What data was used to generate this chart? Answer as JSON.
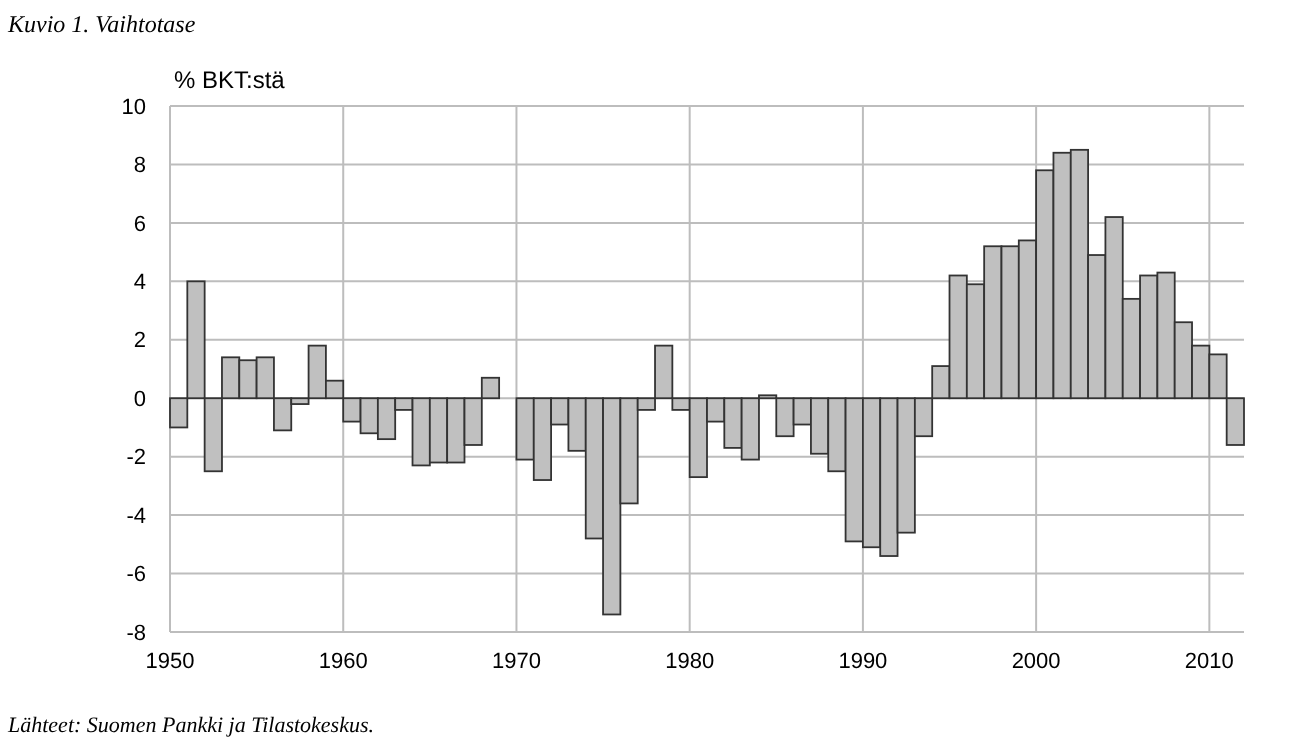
{
  "chart_data": {
    "type": "bar",
    "title": "Kuvio 1. Vaihtotase",
    "ylabel": "% BKT:stä",
    "annotations": [
      "Lähteet: Suomen Pankki ja Tilastokeskus."
    ],
    "x": [
      1950.5,
      1951.5,
      1952.5,
      1953.5,
      1954.5,
      1955.5,
      1956.5,
      1957.5,
      1958.5,
      1959.5,
      1960.5,
      1961.5,
      1962.5,
      1963.5,
      1964.5,
      1965.5,
      1966.5,
      1967.5,
      1968.5,
      1969.5,
      1970.5,
      1971.5,
      1972.5,
      1973.5,
      1974.5,
      1975.5,
      1976.5,
      1977.5,
      1978.5,
      1979.5,
      1980.5,
      1981.5,
      1982.5,
      1983.5,
      1984.5,
      1985.5,
      1986.5,
      1987.5,
      1988.5,
      1989.5,
      1990.5,
      1991.5,
      1992.5,
      1993.5,
      1994.5,
      1995.5,
      1996.5,
      1997.5,
      1998.5,
      1999.5,
      2000.5,
      2001.5,
      2002.5,
      2003.5,
      2004.5,
      2005.5,
      2006.5,
      2007.5,
      2008.5,
      2009.5,
      2010.5,
      2011.5
    ],
    "values": [
      -1.0,
      4.0,
      -2.5,
      1.4,
      1.3,
      1.4,
      -1.1,
      -0.2,
      1.8,
      0.6,
      -0.8,
      -1.2,
      -1.4,
      -0.4,
      -2.3,
      -2.2,
      -2.2,
      -1.6,
      0.7,
      0.0,
      -2.1,
      -2.8,
      -0.9,
      -1.8,
      -4.8,
      -7.4,
      -3.6,
      -0.4,
      1.8,
      -0.4,
      -2.7,
      -0.8,
      -1.7,
      -2.1,
      0.1,
      -1.3,
      -0.9,
      -1.9,
      -2.5,
      -4.9,
      -5.1,
      -5.4,
      -4.6,
      -1.3,
      1.1,
      4.2,
      3.9,
      5.2,
      5.2,
      5.4,
      7.8,
      8.4,
      8.5,
      4.9,
      6.2,
      3.4,
      4.2,
      4.3,
      2.6,
      1.8,
      1.5,
      -1.6
    ],
    "color": "#c0c0c0",
    "xlim": [
      1950,
      2012
    ],
    "xticks": [
      1950,
      1960,
      1970,
      1980,
      1990,
      2000,
      2010
    ],
    "ylim": [
      -8,
      10
    ],
    "yticks": [
      -8,
      -6,
      -4,
      -2,
      0,
      2,
      4,
      6,
      8,
      10
    ],
    "grid": true
  }
}
